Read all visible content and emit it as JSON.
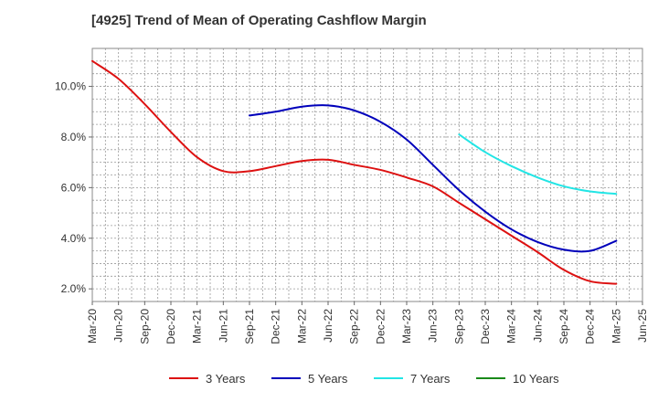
{
  "chart_data": {
    "type": "line",
    "title": "[4925]  Trend of Mean of Operating Cashflow Margin",
    "xlabel": "",
    "ylabel": "",
    "x_ticks": [
      "Mar-20",
      "Jun-20",
      "Sep-20",
      "Dec-20",
      "Mar-21",
      "Jun-21",
      "Sep-21",
      "Dec-21",
      "Mar-22",
      "Jun-22",
      "Sep-22",
      "Dec-22",
      "Mar-23",
      "Jun-23",
      "Sep-23",
      "Dec-23",
      "Mar-24",
      "Jun-24",
      "Sep-24",
      "Dec-24",
      "Mar-25",
      "Jun-25"
    ],
    "y_ticks": [
      "2.0%",
      "4.0%",
      "6.0%",
      "8.0%",
      "10.0%"
    ],
    "ylim": [
      1.5,
      11.5
    ],
    "grid": true,
    "legend_position": "bottom",
    "series": [
      {
        "name": "3 Years",
        "color": "#dd1111",
        "points": [
          [
            "Mar-20",
            11.0
          ],
          [
            "Jun-20",
            10.3
          ],
          [
            "Sep-20",
            9.3
          ],
          [
            "Dec-20",
            8.2
          ],
          [
            "Mar-21",
            7.2
          ],
          [
            "Jun-21",
            6.65
          ],
          [
            "Sep-21",
            6.65
          ],
          [
            "Dec-21",
            6.85
          ],
          [
            "Mar-22",
            7.05
          ],
          [
            "Jun-22",
            7.1
          ],
          [
            "Sep-22",
            6.9
          ],
          [
            "Dec-22",
            6.7
          ],
          [
            "Mar-23",
            6.4
          ],
          [
            "Jun-23",
            6.05
          ],
          [
            "Sep-23",
            5.4
          ],
          [
            "Dec-23",
            4.75
          ],
          [
            "Mar-24",
            4.1
          ],
          [
            "Jun-24",
            3.45
          ],
          [
            "Sep-24",
            2.75
          ],
          [
            "Dec-24",
            2.3
          ],
          [
            "Mar-25",
            2.2
          ]
        ]
      },
      {
        "name": "5 Years",
        "color": "#0000bb",
        "points": [
          [
            "Sep-21",
            8.85
          ],
          [
            "Dec-21",
            9.0
          ],
          [
            "Mar-22",
            9.2
          ],
          [
            "Jun-22",
            9.25
          ],
          [
            "Sep-22",
            9.05
          ],
          [
            "Dec-22",
            8.6
          ],
          [
            "Mar-23",
            7.9
          ],
          [
            "Jun-23",
            6.9
          ],
          [
            "Sep-23",
            5.9
          ],
          [
            "Dec-23",
            5.05
          ],
          [
            "Mar-24",
            4.35
          ],
          [
            "Jun-24",
            3.85
          ],
          [
            "Sep-24",
            3.55
          ],
          [
            "Dec-24",
            3.5
          ],
          [
            "Mar-25",
            3.9
          ]
        ]
      },
      {
        "name": "7 Years",
        "color": "#22e5e5",
        "points": [
          [
            "Sep-23",
            8.1
          ],
          [
            "Dec-23",
            7.4
          ],
          [
            "Mar-24",
            6.85
          ],
          [
            "Jun-24",
            6.4
          ],
          [
            "Sep-24",
            6.05
          ],
          [
            "Dec-24",
            5.85
          ],
          [
            "Mar-25",
            5.75
          ]
        ]
      },
      {
        "name": "10 Years",
        "color": "#1a8a1a",
        "points": []
      }
    ]
  }
}
